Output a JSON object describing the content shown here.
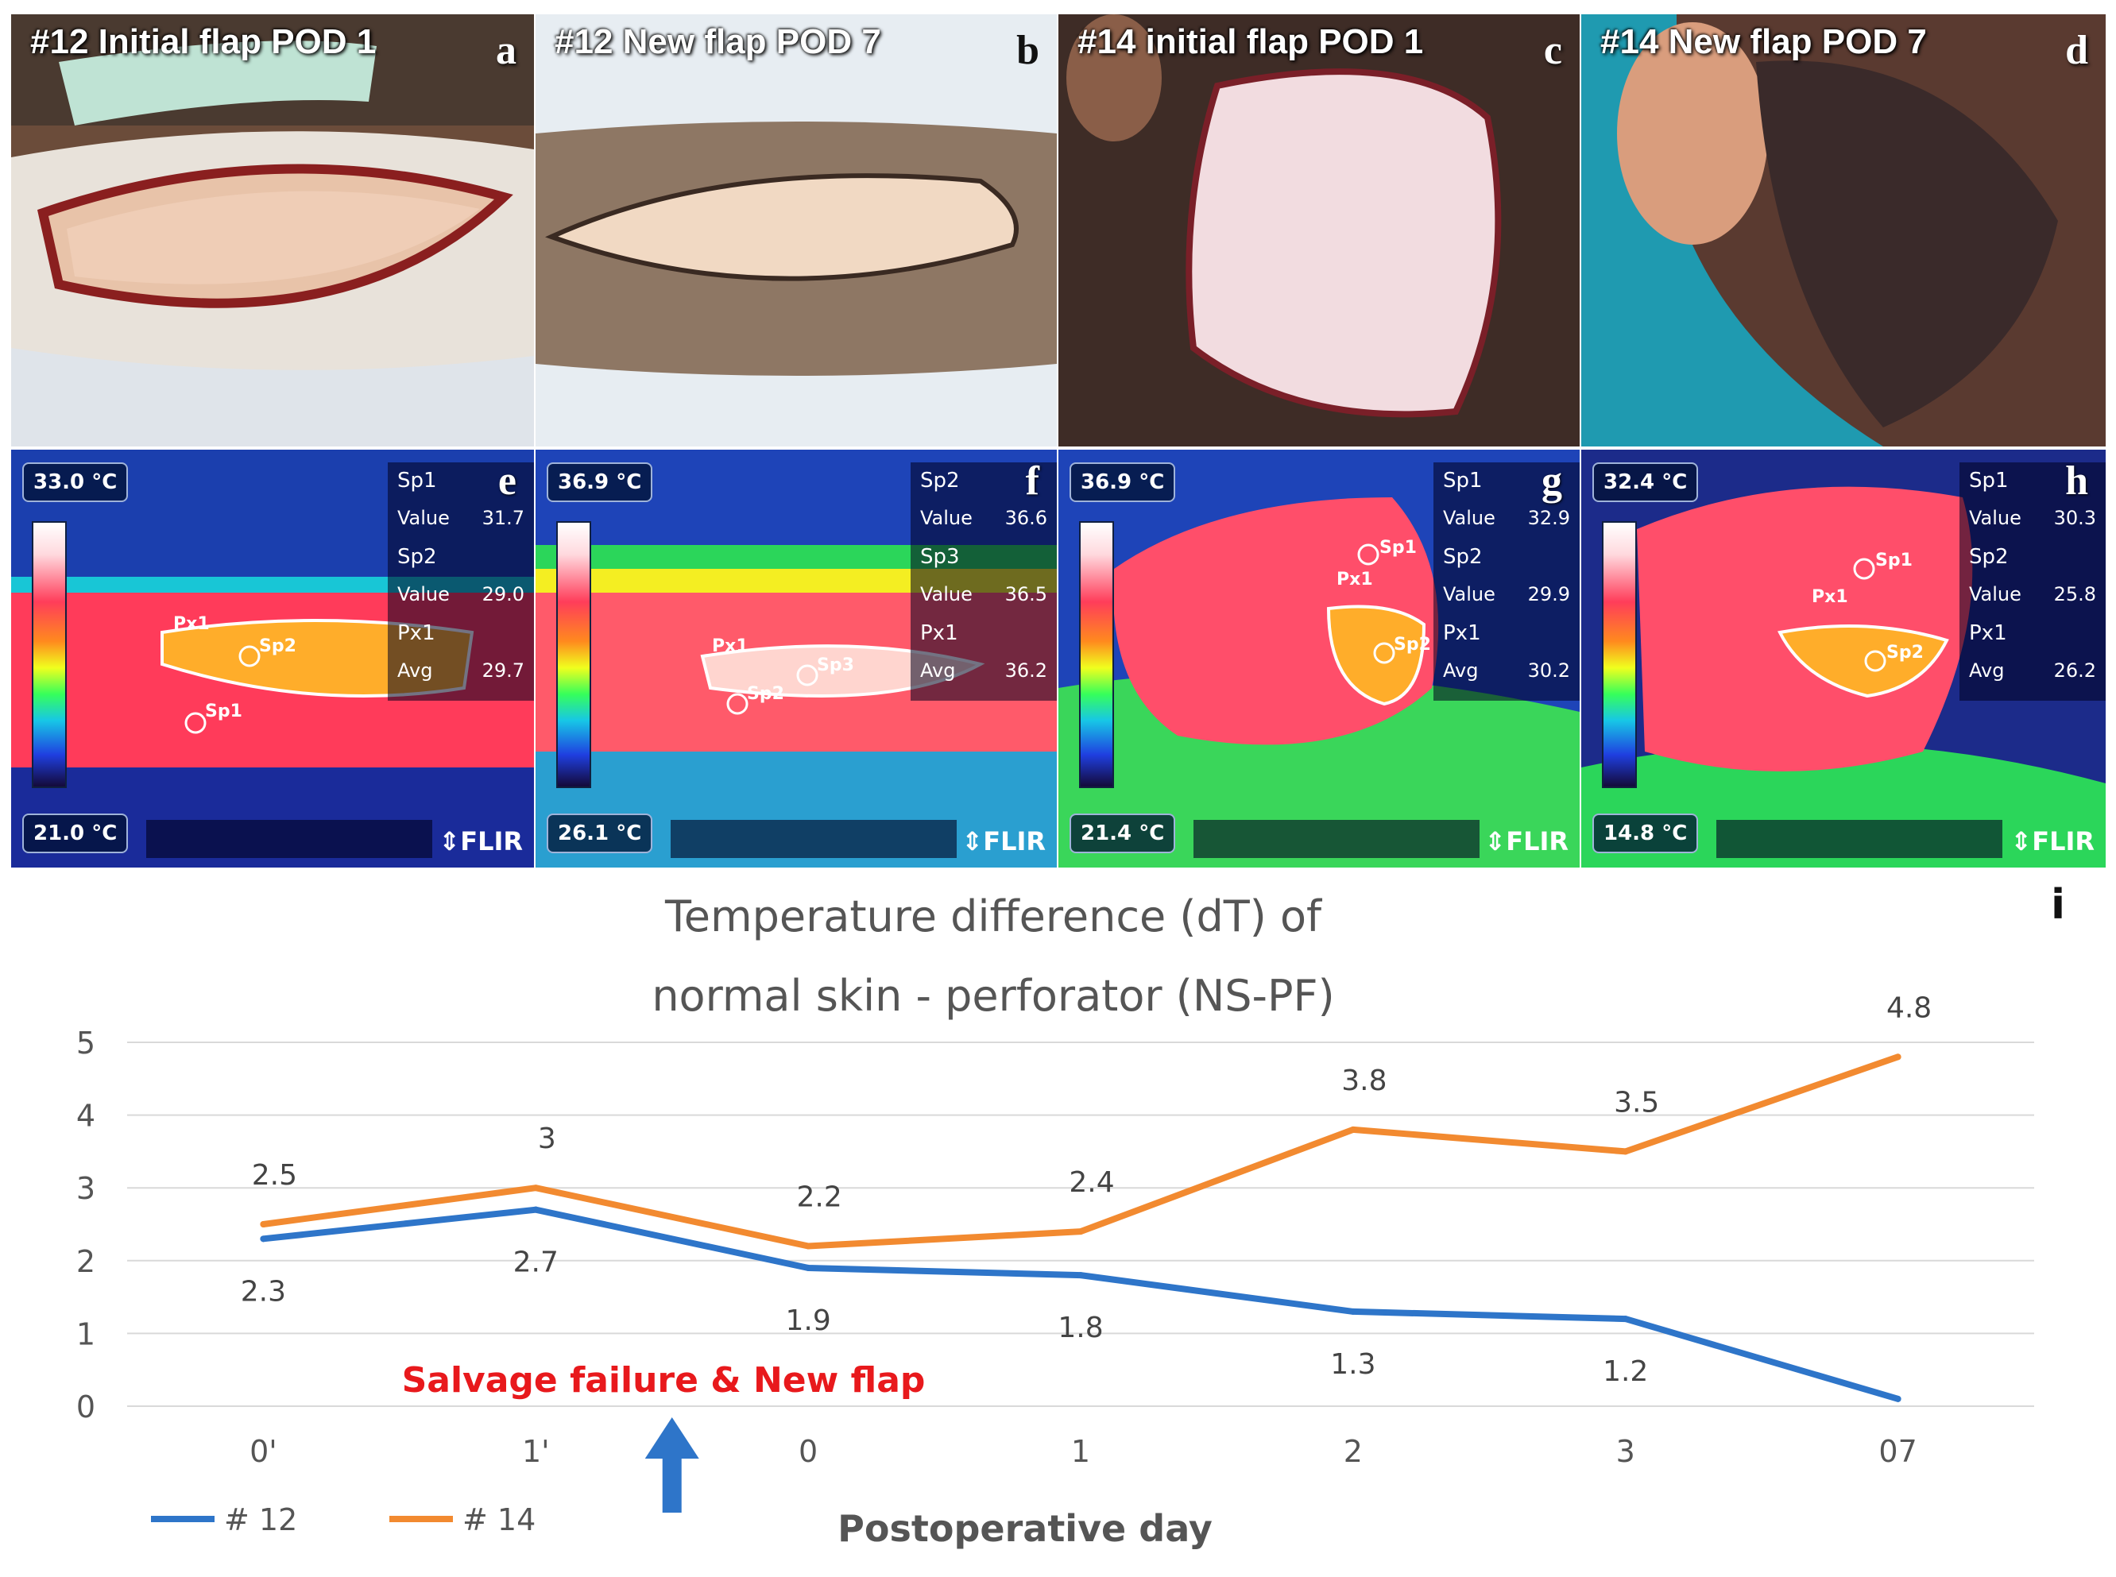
{
  "panels": [
    {
      "title": "#12 Initial flap POD 1",
      "letter": "a"
    },
    {
      "title": "#12 New flap POD 7",
      "letter": "b"
    },
    {
      "title": "#14 initial flap POD 1",
      "letter": "c"
    },
    {
      "title": "#14 New flap POD 7",
      "letter": "d"
    }
  ],
  "thermal": [
    {
      "letter": "e",
      "max": "33.0 °C",
      "min": "21.0 °C",
      "logo": "⇕FLIR",
      "readout": [
        [
          "Sp1",
          ""
        ],
        [
          "Value",
          "31.7"
        ],
        [
          "Sp2",
          ""
        ],
        [
          "Value",
          "29.0"
        ],
        [
          "Px1",
          ""
        ],
        [
          "Avg",
          "29.7"
        ]
      ],
      "markers": [
        "Px1",
        "Sp2",
        "Sp1"
      ]
    },
    {
      "letter": "f",
      "max": "36.9 °C",
      "min": "26.1 °C",
      "logo": "⇕FLIR",
      "readout": [
        [
          "Sp2",
          ""
        ],
        [
          "Value",
          "36.6"
        ],
        [
          "Sp3",
          ""
        ],
        [
          "Value",
          "36.5"
        ],
        [
          "Px1",
          ""
        ],
        [
          "Avg",
          "36.2"
        ]
      ],
      "markers": [
        "Px1",
        "Sp3",
        "Sp2"
      ]
    },
    {
      "letter": "g",
      "max": "36.9 °C",
      "min": "21.4 °C",
      "logo": "⇕FLIR",
      "readout": [
        [
          "Sp1",
          ""
        ],
        [
          "Value",
          "32.9"
        ],
        [
          "Sp2",
          ""
        ],
        [
          "Value",
          "29.9"
        ],
        [
          "Px1",
          ""
        ],
        [
          "Avg",
          "30.2"
        ]
      ],
      "markers": [
        "Px1",
        "Sp1",
        "Sp2"
      ]
    },
    {
      "letter": "h",
      "max": "32.4 °C",
      "min": "14.8 °C",
      "logo": "⇕FLIR",
      "readout": [
        [
          "Sp1",
          ""
        ],
        [
          "Value",
          "30.3"
        ],
        [
          "Sp2",
          ""
        ],
        [
          "Value",
          "25.8"
        ],
        [
          "Px1",
          ""
        ],
        [
          "Avg",
          "26.2"
        ]
      ],
      "markers": [
        "Px1",
        "Sp1",
        "Sp2"
      ]
    }
  ],
  "chart_data": {
    "type": "line",
    "panel_letter": "i",
    "title": [
      "Temperature difference (dT) of",
      "normal skin - perforator (NS-PF)"
    ],
    "xlabel": "Postoperative day",
    "ylabel": "",
    "categories": [
      "0'",
      "1'",
      "0",
      "1",
      "2",
      "3",
      "07"
    ],
    "ylim": [
      0,
      5
    ],
    "yticks": [
      0,
      1,
      2,
      3,
      4,
      5
    ],
    "grid": true,
    "series": [
      {
        "name": "# 12",
        "color": "#2e75c9",
        "values": [
          2.3,
          2.7,
          1.9,
          1.8,
          1.3,
          1.2,
          0.1
        ],
        "labels": [
          "2.3",
          "2.7",
          "1.9",
          "1.8",
          "1.3",
          "1.2",
          ""
        ]
      },
      {
        "name": "# 14",
        "color": "#f28a30",
        "values": [
          2.5,
          3.0,
          2.2,
          2.4,
          3.8,
          3.5,
          4.8
        ],
        "labels": [
          "2.5",
          "3",
          "2.2",
          "2.4",
          "3.8",
          "3.5",
          "4.8"
        ]
      }
    ],
    "annotation": "Salvage failure & New flap",
    "annotation_color": "#e8191c",
    "arrow_color": "#2e75c9"
  }
}
